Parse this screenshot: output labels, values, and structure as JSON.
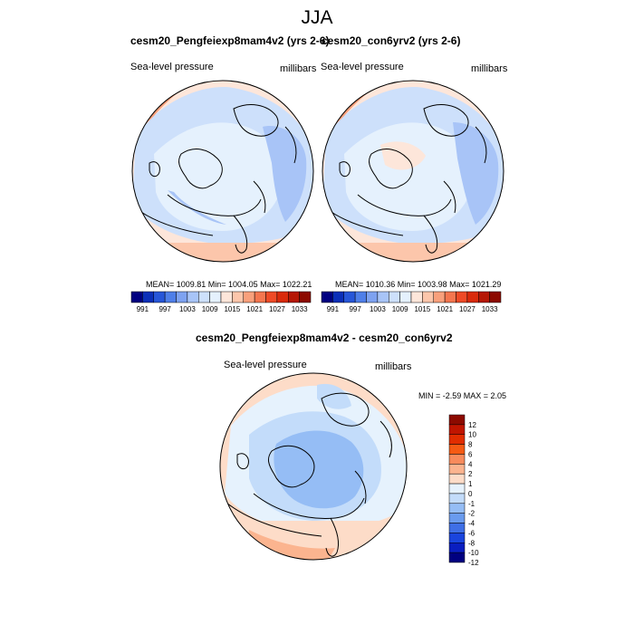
{
  "page": {
    "title": "JJA"
  },
  "panels": [
    {
      "title": "cesm20_Pengfeiexp8mam4v2 (yrs 2-6)",
      "left_label": "Sea-level pressure",
      "right_label": "millibars",
      "stats": "MEAN= 1009.81  Min= 1004.05  Max= 1022.21"
    },
    {
      "title": "cesm20_con6yrv2 (yrs 2-6)",
      "left_label": "Sea-level pressure",
      "right_label": "millibars",
      "stats": "MEAN= 1010.36  Min= 1003.98  Max= 1021.29"
    },
    {
      "title": "cesm20_Pengfeiexp8mam4v2 - cesm20_con6yrv2",
      "left_label": "Sea-level pressure",
      "right_label": "millibars",
      "stats": "MIN =  -2.59 MAX =   2.05"
    }
  ],
  "chart_data": [
    {
      "type": "heatmap",
      "title": "cesm20_Pengfeiexp8mam4v2 (yrs 2-6)",
      "variable": "Sea-level pressure",
      "units": "millibars",
      "projection": "polar stereographic (North Pole)",
      "stats": {
        "mean": 1009.81,
        "min": 1004.05,
        "max": 1022.21
      },
      "colorbar": {
        "orientation": "horizontal",
        "colors": [
          "#000080",
          "#0b2fb8",
          "#2756d8",
          "#4f7fe8",
          "#7ea2f0",
          "#a8c4f7",
          "#cde0fb",
          "#e5f1fd",
          "#fde6da",
          "#fcc6ab",
          "#f8a07c",
          "#f4764f",
          "#ee4a26",
          "#d92a0b",
          "#b51705",
          "#8c0a00"
        ],
        "labels": [
          "991",
          "997",
          "1003",
          "1009",
          "1015",
          "1021",
          "1027",
          "1033"
        ]
      }
    },
    {
      "type": "heatmap",
      "title": "cesm20_con6yrv2 (yrs 2-6)",
      "variable": "Sea-level pressure",
      "units": "millibars",
      "projection": "polar stereographic (North Pole)",
      "stats": {
        "mean": 1010.36,
        "min": 1003.98,
        "max": 1021.29
      },
      "colorbar": {
        "orientation": "horizontal",
        "colors": [
          "#000080",
          "#0b2fb8",
          "#2756d8",
          "#4f7fe8",
          "#7ea2f0",
          "#a8c4f7",
          "#cde0fb",
          "#e5f1fd",
          "#fde6da",
          "#fcc6ab",
          "#f8a07c",
          "#f4764f",
          "#ee4a26",
          "#d92a0b",
          "#b51705",
          "#8c0a00"
        ],
        "labels": [
          "991",
          "997",
          "1003",
          "1009",
          "1015",
          "1021",
          "1027",
          "1033"
        ]
      }
    },
    {
      "type": "heatmap",
      "title": "cesm20_Pengfeiexp8mam4v2 - cesm20_con6yrv2",
      "variable": "Sea-level pressure",
      "units": "millibars",
      "projection": "polar stereographic (North Pole)",
      "stats": {
        "min": -2.59,
        "max": 2.05
      },
      "colorbar": {
        "orientation": "vertical",
        "colors": [
          "#8c0a00",
          "#c01500",
          "#e12d00",
          "#f55a14",
          "#f88b5c",
          "#fbb48f",
          "#fddcc8",
          "#e6f2fd",
          "#c3dcfa",
          "#95bdf5",
          "#6a9bee",
          "#3f6fe6",
          "#1a45de",
          "#0a1ec0",
          "#000080"
        ],
        "labels": [
          "12",
          "10",
          "8",
          "6",
          "4",
          "2",
          "1",
          "0",
          "-1",
          "-2",
          "-4",
          "-6",
          "-8",
          "-10",
          "-12"
        ]
      }
    }
  ]
}
